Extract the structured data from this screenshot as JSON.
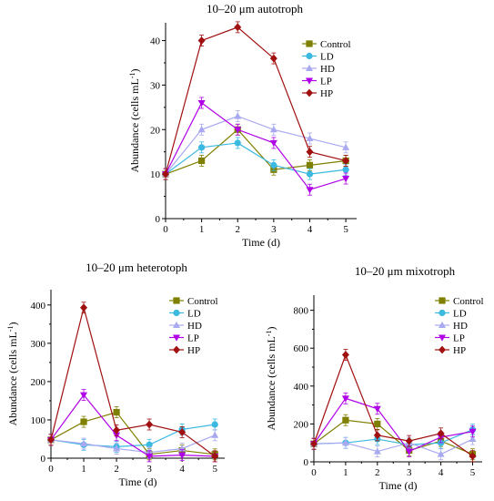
{
  "colors": {
    "Control": "#808000",
    "LD": "#3BB9E0",
    "HD": "#A9A9F0",
    "LP": "#B000E8",
    "HP": "#A01010"
  },
  "markers": {
    "Control": "square",
    "LD": "circle",
    "HD": "triangle-up",
    "LP": "triangle-down",
    "HP": "diamond"
  },
  "chart_data": [
    {
      "type": "line",
      "title": "10–20 μm autotroph",
      "xlabel": "Time (d)",
      "ylabel": "Abundance (cells mL",
      "ylabel_sup": "-1",
      "ylabel_end": ")",
      "x": [
        0,
        1,
        2,
        3,
        4,
        5
      ],
      "xlim": [
        0,
        5.3
      ],
      "ylim": [
        0,
        44
      ],
      "xticks": [
        0,
        1,
        2,
        3,
        4,
        5
      ],
      "yticks": [
        0,
        10,
        20,
        30,
        40
      ],
      "legend_position": "top-right",
      "series": [
        {
          "name": "Control",
          "values": [
            10,
            13,
            20,
            11,
            12,
            13
          ]
        },
        {
          "name": "LD",
          "values": [
            10,
            16,
            17,
            12,
            10,
            11
          ]
        },
        {
          "name": "HD",
          "values": [
            10,
            20,
            23,
            20,
            18,
            16
          ]
        },
        {
          "name": "LP",
          "values": [
            10,
            26,
            20,
            17,
            6.5,
            9
          ]
        },
        {
          "name": "HP",
          "values": [
            10,
            40,
            43,
            36,
            15,
            13
          ]
        }
      ]
    },
    {
      "type": "line",
      "title": "10–20 μm heterotoph",
      "xlabel": "Time (d)",
      "ylabel": "Abundance (cells mL",
      "ylabel_sup": "-1",
      "ylabel_end": ")",
      "x": [
        0,
        1,
        2,
        3,
        4,
        5
      ],
      "xlim": [
        0,
        5.3
      ],
      "ylim": [
        0,
        440
      ],
      "xticks": [
        0,
        1,
        2,
        3,
        4,
        5
      ],
      "yticks": [
        0,
        100,
        200,
        300,
        400
      ],
      "legend_position": "top-right",
      "series": [
        {
          "name": "Control",
          "values": [
            48,
            95,
            120,
            10,
            20,
            10
          ]
        },
        {
          "name": "LD",
          "values": [
            48,
            35,
            30,
            35,
            75,
            88
          ]
        },
        {
          "name": "HD",
          "values": [
            48,
            38,
            25,
            15,
            25,
            60
          ]
        },
        {
          "name": "LP",
          "values": [
            48,
            165,
            60,
            5,
            8,
            5
          ]
        },
        {
          "name": "HP",
          "values": [
            48,
            393,
            73,
            88,
            68,
            5
          ]
        }
      ]
    },
    {
      "type": "line",
      "title": "10–20 μm mixotroph",
      "xlabel": "Time (d)",
      "ylabel": "Abundance (cells mL",
      "ylabel_sup": "-1",
      "ylabel_end": ")",
      "x": [
        0,
        1,
        2,
        3,
        4,
        5
      ],
      "xlim": [
        0,
        5.3
      ],
      "ylim": [
        0,
        880
      ],
      "xticks": [
        0,
        1,
        2,
        3,
        4,
        5
      ],
      "yticks": [
        0,
        200,
        400,
        600,
        800
      ],
      "legend_position": "top-right",
      "series": [
        {
          "name": "Control",
          "values": [
            95,
            220,
            200,
            60,
            110,
            40
          ]
        },
        {
          "name": "LD",
          "values": [
            95,
            100,
            120,
            90,
            100,
            170
          ]
        },
        {
          "name": "HD",
          "values": [
            95,
            100,
            55,
            100,
            40,
            120
          ]
        },
        {
          "name": "LP",
          "values": [
            95,
            335,
            280,
            55,
            130,
            160
          ]
        },
        {
          "name": "HP",
          "values": [
            95,
            565,
            140,
            110,
            150,
            30
          ]
        }
      ]
    }
  ]
}
